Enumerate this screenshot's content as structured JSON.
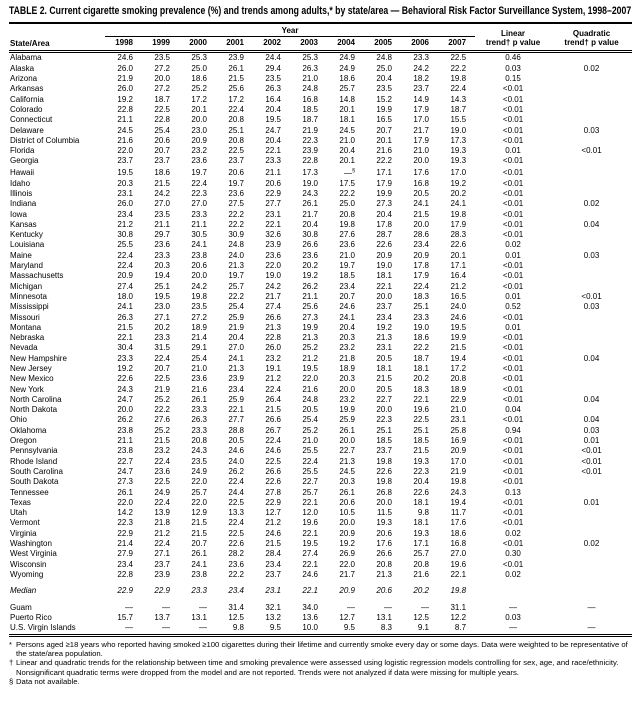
{
  "title": "TABLE 2. Current cigarette smoking prevalence (%) and trends among adults,* by state/area — Behavioral Risk Factor Surveillance System, 1998–2007",
  "table": {
    "year_spanner_label": "Year",
    "state_col_header": "State/Area",
    "years": [
      "1998",
      "1999",
      "2000",
      "2001",
      "2002",
      "2003",
      "2004",
      "2005",
      "2006",
      "2007"
    ],
    "linear_header": {
      "top": "Linear",
      "bottom": "trend† p value"
    },
    "quadratic_header": {
      "top": "Quadratic",
      "bottom": "trend† p value"
    },
    "rows": [
      {
        "state": "Alabama",
        "values": [
          "24.6",
          "23.5",
          "25.3",
          "23.9",
          "24.4",
          "25.3",
          "24.9",
          "24.8",
          "23.3",
          "22.5"
        ],
        "linear": "0.46",
        "quadratic": ""
      },
      {
        "state": "Alaska",
        "values": [
          "26.0",
          "27.2",
          "25.0",
          "26.1",
          "29.4",
          "26.3",
          "24.9",
          "25.0",
          "24.2",
          "22.2"
        ],
        "linear": "0.03",
        "quadratic": "0.02"
      },
      {
        "state": "Arizona",
        "values": [
          "21.9",
          "20.0",
          "18.6",
          "21.5",
          "23.5",
          "21.0",
          "18.6",
          "20.4",
          "18.2",
          "19.8"
        ],
        "linear": "0.15",
        "quadratic": ""
      },
      {
        "state": "Arkansas",
        "values": [
          "26.0",
          "27.2",
          "25.2",
          "25.6",
          "26.3",
          "24.8",
          "25.7",
          "23.5",
          "23.7",
          "22.4"
        ],
        "linear": "<0.01",
        "quadratic": ""
      },
      {
        "state": "California",
        "values": [
          "19.2",
          "18.7",
          "17.2",
          "17.2",
          "16.4",
          "16.8",
          "14.8",
          "15.2",
          "14.9",
          "14.3"
        ],
        "linear": "<0.01",
        "quadratic": ""
      },
      {
        "state": "Colorado",
        "values": [
          "22.8",
          "22.5",
          "20.1",
          "22.4",
          "20.4",
          "18.5",
          "20.1",
          "19.9",
          "17.9",
          "18.7"
        ],
        "linear": "<0.01",
        "quadratic": ""
      },
      {
        "state": "Connecticut",
        "values": [
          "21.1",
          "22.8",
          "20.0",
          "20.8",
          "19.5",
          "18.7",
          "18.1",
          "16.5",
          "17.0",
          "15.5"
        ],
        "linear": "<0.01",
        "quadratic": ""
      },
      {
        "state": "Delaware",
        "values": [
          "24.5",
          "25.4",
          "23.0",
          "25.1",
          "24.7",
          "21.9",
          "24.5",
          "20.7",
          "21.7",
          "19.0"
        ],
        "linear": "<0.01",
        "quadratic": "0.03"
      },
      {
        "state": "District of Columbia",
        "values": [
          "21.6",
          "20.6",
          "20.9",
          "20.8",
          "20.4",
          "22.3",
          "21.0",
          "20.1",
          "17.9",
          "17.3"
        ],
        "linear": "<0.01",
        "quadratic": ""
      },
      {
        "state": "Florida",
        "values": [
          "22.0",
          "20.7",
          "23.2",
          "22.5",
          "22.1",
          "23.9",
          "20.4",
          "21.6",
          "21.0",
          "19.3"
        ],
        "linear": "0.01",
        "quadratic": "<0.01"
      },
      {
        "state": "Georgia",
        "values": [
          "23.7",
          "23.7",
          "23.6",
          "23.7",
          "23.3",
          "22.8",
          "20.1",
          "22.2",
          "20.0",
          "19.3"
        ],
        "linear": "<0.01",
        "quadratic": ""
      },
      {
        "state": "Hawaii",
        "values": [
          "19.5",
          "18.6",
          "19.7",
          "20.6",
          "21.1",
          "17.3",
          "—§",
          "17.1",
          "17.6",
          "17.0"
        ],
        "linear": "<0.01",
        "quadratic": ""
      },
      {
        "state": "Idaho",
        "values": [
          "20.3",
          "21.5",
          "22.4",
          "19.7",
          "20.6",
          "19.0",
          "17.5",
          "17.9",
          "16.8",
          "19.2"
        ],
        "linear": "<0.01",
        "quadratic": ""
      },
      {
        "state": "Illinois",
        "values": [
          "23.1",
          "24.2",
          "22.3",
          "23.6",
          "22.9",
          "24.3",
          "22.2",
          "19.9",
          "20.5",
          "20.2"
        ],
        "linear": "<0.01",
        "quadratic": ""
      },
      {
        "state": "Indiana",
        "values": [
          "26.0",
          "27.0",
          "27.0",
          "27.5",
          "27.7",
          "26.1",
          "25.0",
          "27.3",
          "24.1",
          "24.1"
        ],
        "linear": "<0.01",
        "quadratic": "0.02"
      },
      {
        "state": "Iowa",
        "values": [
          "23.4",
          "23.5",
          "23.3",
          "22.2",
          "23.1",
          "21.7",
          "20.8",
          "20.4",
          "21.5",
          "19.8"
        ],
        "linear": "<0.01",
        "quadratic": ""
      },
      {
        "state": "Kansas",
        "values": [
          "21.2",
          "21.1",
          "21.1",
          "22.2",
          "22.1",
          "20.4",
          "19.8",
          "17.8",
          "20.0",
          "17.9"
        ],
        "linear": "<0.01",
        "quadratic": "0.04"
      },
      {
        "state": "Kentucky",
        "values": [
          "30.8",
          "29.7",
          "30.5",
          "30.9",
          "32.6",
          "30.8",
          "27.6",
          "28.7",
          "28.6",
          "28.3"
        ],
        "linear": "<0.01",
        "quadratic": ""
      },
      {
        "state": "Louisiana",
        "values": [
          "25.5",
          "23.6",
          "24.1",
          "24.8",
          "23.9",
          "26.6",
          "23.6",
          "22.6",
          "23.4",
          "22.6"
        ],
        "linear": "0.02",
        "quadratic": ""
      },
      {
        "state": "Maine",
        "values": [
          "22.4",
          "23.3",
          "23.8",
          "24.0",
          "23.6",
          "23.6",
          "21.0",
          "20.9",
          "20.9",
          "20.1"
        ],
        "linear": "0.01",
        "quadratic": "0.03"
      },
      {
        "state": "Maryland",
        "values": [
          "22.4",
          "20.3",
          "20.6",
          "21.3",
          "22.0",
          "20.2",
          "19.7",
          "19.0",
          "17.8",
          "17.1"
        ],
        "linear": "<0.01",
        "quadratic": ""
      },
      {
        "state": "Massachusetts",
        "values": [
          "20.9",
          "19.4",
          "20.0",
          "19.7",
          "19.0",
          "19.2",
          "18.5",
          "18.1",
          "17.9",
          "16.4"
        ],
        "linear": "<0.01",
        "quadratic": ""
      },
      {
        "state": "Michigan",
        "values": [
          "27.4",
          "25.1",
          "24.2",
          "25.7",
          "24.2",
          "26.2",
          "23.4",
          "22.1",
          "22.4",
          "21.2"
        ],
        "linear": "<0.01",
        "quadratic": ""
      },
      {
        "state": "Minnesota",
        "values": [
          "18.0",
          "19.5",
          "19.8",
          "22.2",
          "21.7",
          "21.1",
          "20.7",
          "20.0",
          "18.3",
          "16.5"
        ],
        "linear": "0.01",
        "quadratic": "<0.01"
      },
      {
        "state": "Mississippi",
        "values": [
          "24.1",
          "23.0",
          "23.5",
          "25.4",
          "27.4",
          "25.6",
          "24.6",
          "23.7",
          "25.1",
          "24.0"
        ],
        "linear": "0.52",
        "quadratic": "0.03"
      },
      {
        "state": "Missouri",
        "values": [
          "26.3",
          "27.1",
          "27.2",
          "25.9",
          "26.6",
          "27.3",
          "24.1",
          "23.4",
          "23.3",
          "24.6"
        ],
        "linear": "<0.01",
        "quadratic": ""
      },
      {
        "state": "Montana",
        "values": [
          "21.5",
          "20.2",
          "18.9",
          "21.9",
          "21.3",
          "19.9",
          "20.4",
          "19.2",
          "19.0",
          "19.5"
        ],
        "linear": "0.01",
        "quadratic": ""
      },
      {
        "state": "Nebraska",
        "values": [
          "22.1",
          "23.3",
          "21.4",
          "20.4",
          "22.8",
          "21.3",
          "20.3",
          "21.3",
          "18.6",
          "19.9"
        ],
        "linear": "<0.01",
        "quadratic": ""
      },
      {
        "state": "Nevada",
        "values": [
          "30.4",
          "31.5",
          "29.1",
          "27.0",
          "26.0",
          "25.2",
          "23.2",
          "23.1",
          "22.2",
          "21.5"
        ],
        "linear": "<0.01",
        "quadratic": ""
      },
      {
        "state": "New Hampshire",
        "values": [
          "23.3",
          "22.4",
          "25.4",
          "24.1",
          "23.2",
          "21.2",
          "21.8",
          "20.5",
          "18.7",
          "19.4"
        ],
        "linear": "<0.01",
        "quadratic": "0.04"
      },
      {
        "state": "New Jersey",
        "values": [
          "19.2",
          "20.7",
          "21.0",
          "21.3",
          "19.1",
          "19.5",
          "18.9",
          "18.1",
          "18.1",
          "17.2"
        ],
        "linear": "<0.01",
        "quadratic": ""
      },
      {
        "state": "New Mexico",
        "values": [
          "22.6",
          "22.5",
          "23.6",
          "23.9",
          "21.2",
          "22.0",
          "20.3",
          "21.5",
          "20.2",
          "20.8"
        ],
        "linear": "<0.01",
        "quadratic": ""
      },
      {
        "state": "New York",
        "values": [
          "24.3",
          "21.9",
          "21.6",
          "23.4",
          "22.4",
          "21.6",
          "20.0",
          "20.5",
          "18.3",
          "18.9"
        ],
        "linear": "<0.01",
        "quadratic": ""
      },
      {
        "state": "North Carolina",
        "values": [
          "24.7",
          "25.2",
          "26.1",
          "25.9",
          "26.4",
          "24.8",
          "23.2",
          "22.7",
          "22.1",
          "22.9"
        ],
        "linear": "<0.01",
        "quadratic": "0.04"
      },
      {
        "state": "North Dakota",
        "values": [
          "20.0",
          "22.2",
          "23.3",
          "22.1",
          "21.5",
          "20.5",
          "19.9",
          "20.0",
          "19.6",
          "21.0"
        ],
        "linear": "0.04",
        "quadratic": ""
      },
      {
        "state": "Ohio",
        "values": [
          "26.2",
          "27.6",
          "26.3",
          "27.7",
          "26.6",
          "25.4",
          "25.9",
          "22.3",
          "22.5",
          "23.1"
        ],
        "linear": "<0.01",
        "quadratic": "0.04"
      },
      {
        "state": "Oklahoma",
        "values": [
          "23.8",
          "25.2",
          "23.3",
          "28.8",
          "26.7",
          "25.2",
          "26.1",
          "25.1",
          "25.1",
          "25.8"
        ],
        "linear": "0.94",
        "quadratic": "0.03"
      },
      {
        "state": "Oregon",
        "values": [
          "21.1",
          "21.5",
          "20.8",
          "20.5",
          "22.4",
          "21.0",
          "20.0",
          "18.5",
          "18.5",
          "16.9"
        ],
        "linear": "<0.01",
        "quadratic": "0.01"
      },
      {
        "state": "Pennsylvania",
        "values": [
          "23.8",
          "23.2",
          "24.3",
          "24.6",
          "24.6",
          "25.5",
          "22.7",
          "23.7",
          "21.5",
          "20.9"
        ],
        "linear": "<0.01",
        "quadratic": "<0.01"
      },
      {
        "state": "Rhode Island",
        "values": [
          "22.7",
          "22.4",
          "23.5",
          "24.0",
          "22.5",
          "22.4",
          "21.3",
          "19.8",
          "19.3",
          "17.0"
        ],
        "linear": "<0.01",
        "quadratic": "<0.01"
      },
      {
        "state": "South Carolina",
        "values": [
          "24.7",
          "23.6",
          "24.9",
          "26.2",
          "26.6",
          "25.5",
          "24.5",
          "22.6",
          "22.3",
          "21.9"
        ],
        "linear": "<0.01",
        "quadratic": "<0.01"
      },
      {
        "state": "South Dakota",
        "values": [
          "27.3",
          "22.5",
          "22.0",
          "22.4",
          "22.6",
          "22.7",
          "20.3",
          "19.8",
          "20.4",
          "19.8"
        ],
        "linear": "<0.01",
        "quadratic": ""
      },
      {
        "state": "Tennessee",
        "values": [
          "26.1",
          "24.9",
          "25.7",
          "24.4",
          "27.8",
          "25.7",
          "26.1",
          "26.8",
          "22.6",
          "24.3"
        ],
        "linear": "0.13",
        "quadratic": ""
      },
      {
        "state": "Texas",
        "values": [
          "22.0",
          "22.4",
          "22.0",
          "22.5",
          "22.9",
          "22.1",
          "20.6",
          "20.0",
          "18.1",
          "19.4"
        ],
        "linear": "<0.01",
        "quadratic": "0.01"
      },
      {
        "state": "Utah",
        "values": [
          "14.2",
          "13.9",
          "12.9",
          "13.3",
          "12.7",
          "12.0",
          "10.5",
          "11.5",
          "9.8",
          "11.7"
        ],
        "linear": "<0.01",
        "quadratic": ""
      },
      {
        "state": "Vermont",
        "values": [
          "22.3",
          "21.8",
          "21.5",
          "22.4",
          "21.2",
          "19.6",
          "20.0",
          "19.3",
          "18.1",
          "17.6"
        ],
        "linear": "<0.01",
        "quadratic": ""
      },
      {
        "state": "Virginia",
        "values": [
          "22.9",
          "21.2",
          "21.5",
          "22.5",
          "24.6",
          "22.1",
          "20.9",
          "20.6",
          "19.3",
          "18.6"
        ],
        "linear": "0.02",
        "quadratic": ""
      },
      {
        "state": "Washington",
        "values": [
          "21.4",
          "22.4",
          "20.7",
          "22.6",
          "21.5",
          "19.5",
          "19.2",
          "17.6",
          "17.1",
          "16.8"
        ],
        "linear": "<0.01",
        "quadratic": "0.02"
      },
      {
        "state": "West Virginia",
        "values": [
          "27.9",
          "27.1",
          "26.1",
          "28.2",
          "28.4",
          "27.4",
          "26.9",
          "26.6",
          "25.7",
          "27.0"
        ],
        "linear": "0.30",
        "quadratic": ""
      },
      {
        "state": "Wisconsin",
        "values": [
          "23.4",
          "23.7",
          "24.1",
          "23.6",
          "23.4",
          "22.1",
          "22.0",
          "20.8",
          "20.8",
          "19.6"
        ],
        "linear": "<0.01",
        "quadratic": ""
      },
      {
        "state": "Wyoming",
        "values": [
          "22.8",
          "23.9",
          "23.8",
          "22.2",
          "23.7",
          "24.6",
          "21.7",
          "21.3",
          "21.6",
          "22.1"
        ],
        "linear": "0.02",
        "quadratic": ""
      }
    ],
    "median": {
      "state": "Median",
      "values": [
        "22.9",
        "22.9",
        "23.3",
        "23.4",
        "23.1",
        "22.1",
        "20.9",
        "20.6",
        "20.2",
        "19.8"
      ],
      "linear": "",
      "quadratic": ""
    },
    "territories": [
      {
        "state": "Guam",
        "values": [
          "—",
          "—",
          "—",
          "31.4",
          "32.1",
          "34.0",
          "—",
          "—",
          "—",
          "31.1"
        ],
        "linear": "—",
        "quadratic": "—"
      },
      {
        "state": "Puerto Rico",
        "values": [
          "15.7",
          "13.7",
          "13.1",
          "12.5",
          "13.2",
          "13.6",
          "12.7",
          "13.1",
          "12.5",
          "12.2"
        ],
        "linear": "0.03",
        "quadratic": ""
      },
      {
        "state": "U.S. Virgin Islands",
        "values": [
          "—",
          "—",
          "—",
          "9.8",
          "9.5",
          "10.0",
          "9.5",
          "8.3",
          "9.1",
          "8.7"
        ],
        "linear": "—",
        "quadratic": "—"
      }
    ]
  },
  "footnotes": [
    {
      "marker": "*",
      "text": "Persons aged ≥18 years who reported having smoked ≥100 cigarettes during their lifetime and currently smoke every day or some days. Data were weighted to be representative of the state/area population."
    },
    {
      "marker": "†",
      "text": "Linear and quadratic trends for the relationship between time and smoking prevalence were assessed using logistic regression models controlling for sex, age, and race/ethnicity. Nonsignificant quadratic terms were dropped from the model and are not reported. Trends were not analyzed if data were missing for multiple years."
    },
    {
      "marker": "§",
      "text": "Data not available."
    }
  ]
}
